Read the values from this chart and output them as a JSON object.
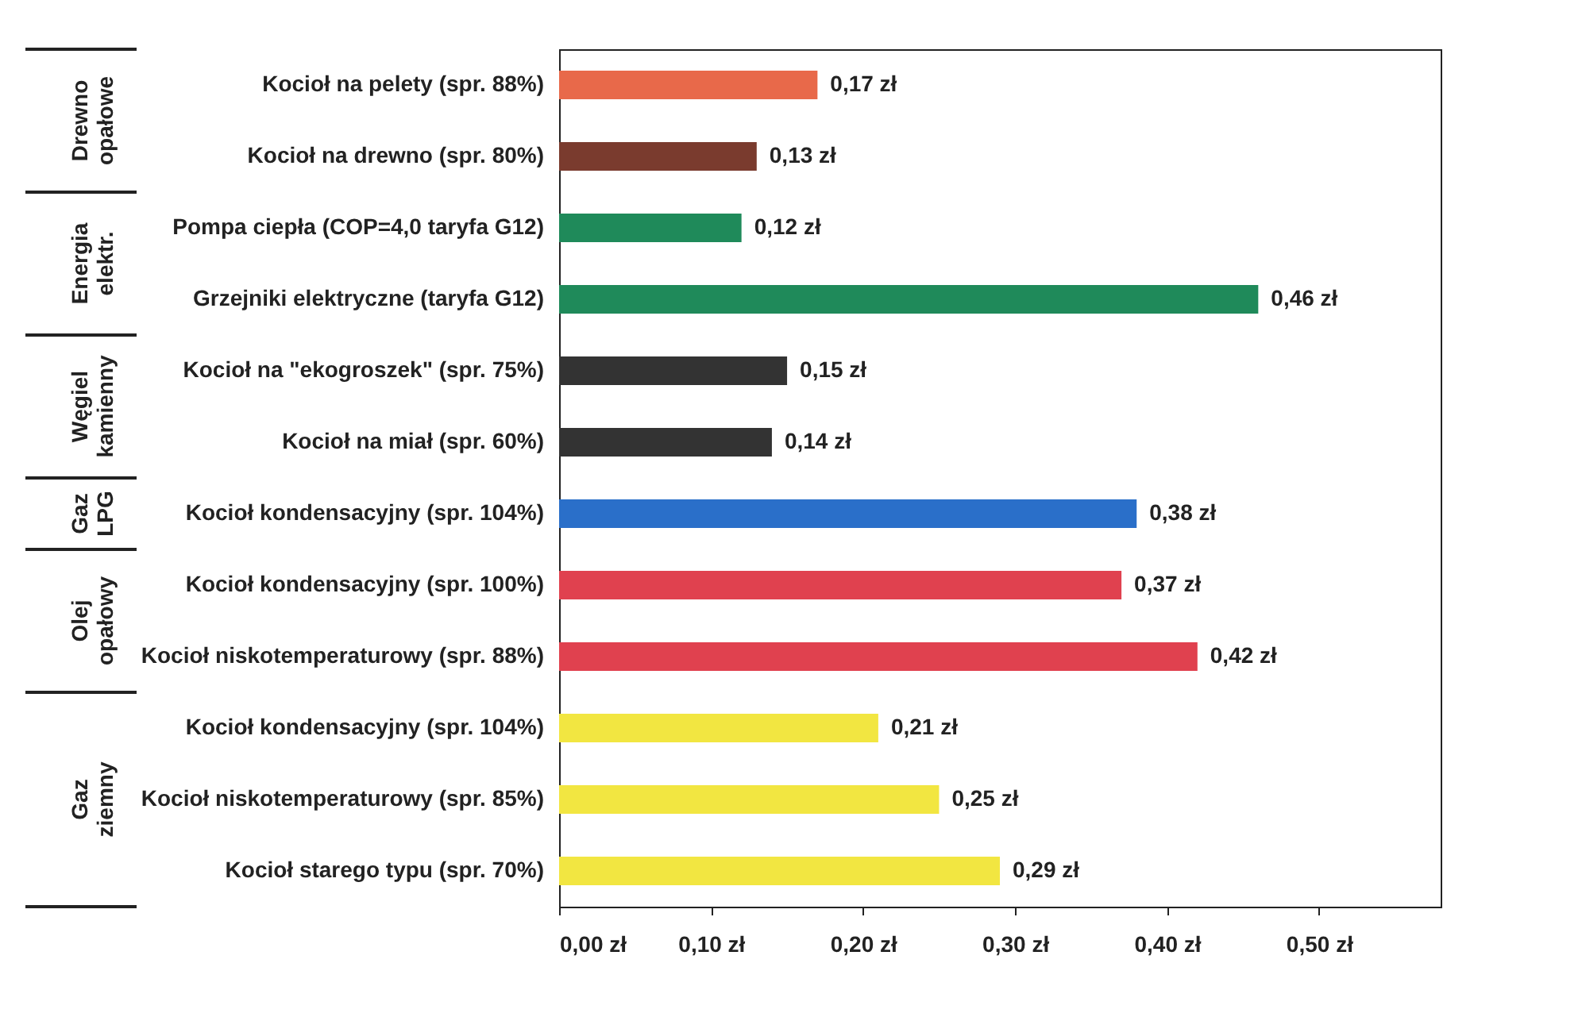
{
  "chart_data": {
    "type": "bar",
    "orientation": "horizontal",
    "categories": [
      "Kocioł na pelety (spr. 88%)",
      "Kocioł na drewno (spr. 80%)",
      "Pompa ciepła (COP=4,0 taryfa G12)",
      "Grzejniki elektryczne (taryfa G12)",
      "Kocioł na \"ekogroszek\" (spr. 75%)",
      "Kocioł na miał (spr. 60%)",
      "Kocioł kondensacyjny (spr. 104%)",
      "Kocioł kondensacyjny (spr. 100%)",
      "Kocioł niskotemperaturowy (spr. 88%)",
      "Kocioł kondensacyjny (spr. 104%)",
      "Kocioł niskotemperaturowy (spr. 85%)",
      "Kocioł starego typu (spr. 70%)"
    ],
    "values": [
      0.17,
      0.13,
      0.12,
      0.46,
      0.15,
      0.14,
      0.38,
      0.37,
      0.42,
      0.21,
      0.25,
      0.29
    ],
    "value_labels": [
      "0,17 zł",
      "0,13 zł",
      "0,12 zł",
      "0,46 zł",
      "0,15 zł",
      "0,14 zł",
      "0,38 zł",
      "0,37 zł",
      "0,42 zł",
      "0,21 zł",
      "0,25 zł",
      "0,29 zł"
    ],
    "colors": [
      "#e8694a",
      "#7a3b2e",
      "#1f8a5a",
      "#1f8a5a",
      "#333333",
      "#333333",
      "#2a6fc9",
      "#e0414f",
      "#e0414f",
      "#f2e641",
      "#f2e641",
      "#f2e641"
    ],
    "annotations": [
      "Drewno opałowe",
      "Energia elektr.",
      "Węgiel kamienny",
      "Gaz LPG",
      "Olej opałowy",
      "Gaz ziemny"
    ],
    "xlim": [
      0,
      0.58
    ],
    "xticks": [
      {
        "value": 0,
        "label": "0,00 zł"
      },
      {
        "value": 0.1,
        "label": "0,10 zł"
      },
      {
        "value": 0.2,
        "label": "0,20 zł"
      },
      {
        "value": 0.3,
        "label": "0,30 zł"
      },
      {
        "value": 0.4,
        "label": "0,40 zł"
      },
      {
        "value": 0.5,
        "label": "0,50 zł"
      }
    ],
    "grid": false,
    "legend": false
  }
}
